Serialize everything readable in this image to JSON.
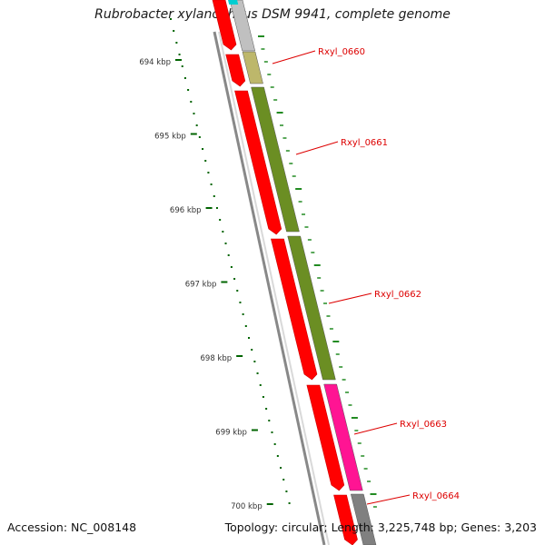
{
  "title": "Rubrobacter xylanophilus DSM 9941, complete genome",
  "footer": {
    "accession": "Accession: NC_008148",
    "summary": "Topology: circular; Length: 3,225,748 bp; Genes: 3,203"
  },
  "map": {
    "scale_ticks": [
      {
        "kbp": 694,
        "label": "694 kbp"
      },
      {
        "kbp": 695,
        "label": "695 kbp"
      },
      {
        "kbp": 696,
        "label": "696 kbp"
      },
      {
        "kbp": 697,
        "label": "697 kbp"
      },
      {
        "kbp": 698,
        "label": "698 kbp"
      },
      {
        "kbp": 699,
        "label": "699 kbp"
      },
      {
        "kbp": 700,
        "label": "700 kbp"
      }
    ],
    "gene_labels": [
      {
        "name": "Rxyl_0660"
      },
      {
        "name": "Rxyl_0661"
      },
      {
        "name": "Rxyl_0662"
      },
      {
        "name": "Rxyl_0663"
      },
      {
        "name": "Rxyl_0664"
      }
    ],
    "colors": {
      "backbone": "#888888",
      "cds_track": "#ff0000",
      "rxyl_0660": "#bdb76b",
      "rxyl_0661": "#6b8e23",
      "rxyl_0662": "#6b8e23",
      "rxyl_0663": "#ff1493",
      "rxyl_0664": "#808080",
      "top_gray": "#c0c0c0",
      "top_cyan": "#00ced1",
      "ticks_dark_green": "#006400",
      "ticks_green": "#228b22",
      "label_red": "#dd0000"
    }
  }
}
